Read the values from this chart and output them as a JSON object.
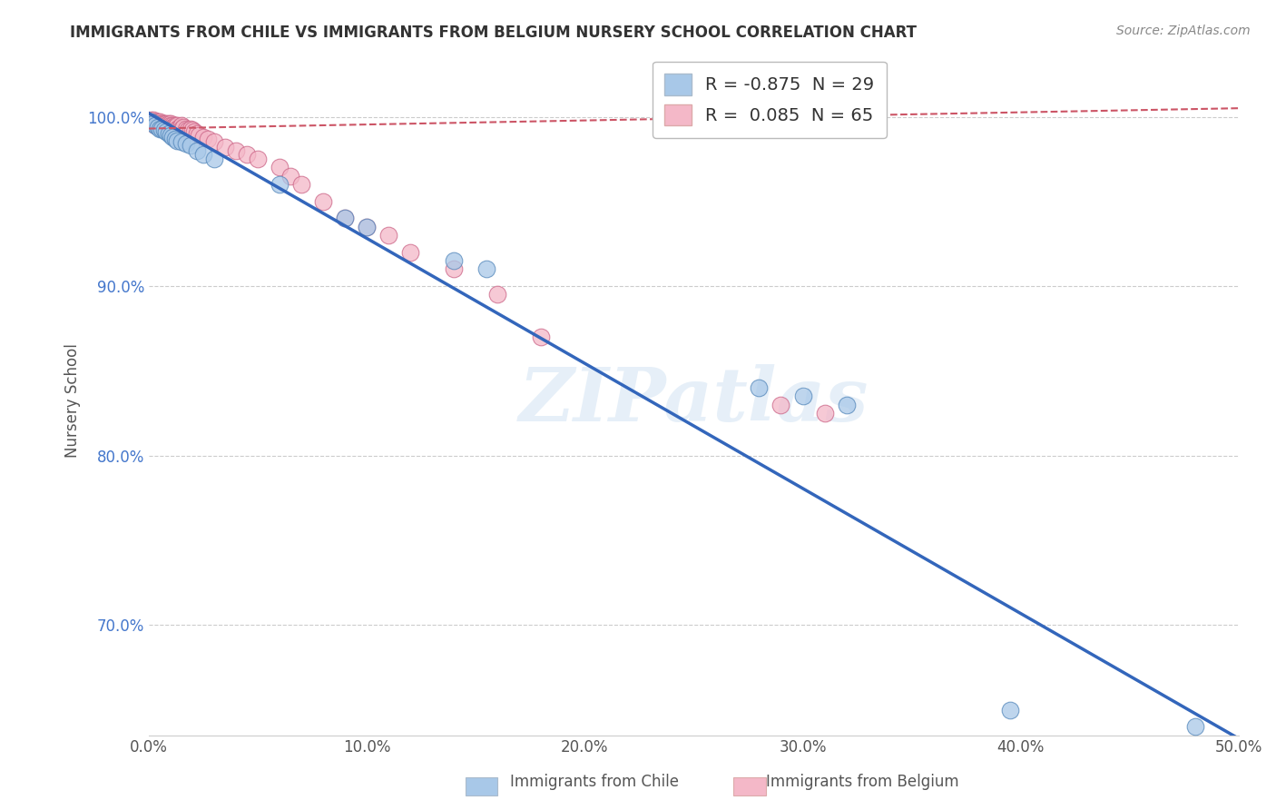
{
  "title": "IMMIGRANTS FROM CHILE VS IMMIGRANTS FROM BELGIUM NURSERY SCHOOL CORRELATION CHART",
  "source": "Source: ZipAtlas.com",
  "ylabel": "Nursery School",
  "xlim": [
    0.0,
    0.5
  ],
  "ylim": [
    0.635,
    1.03
  ],
  "xticks": [
    0.0,
    0.1,
    0.2,
    0.3,
    0.4,
    0.5
  ],
  "xtick_labels": [
    "0.0%",
    "10.0%",
    "20.0%",
    "30.0%",
    "40.0%",
    "50.0%"
  ],
  "yticks": [
    0.7,
    0.8,
    0.9,
    1.0
  ],
  "ytick_labels": [
    "70.0%",
    "80.0%",
    "90.0%",
    "100.0%"
  ],
  "chile_color": "#a8c8e8",
  "chile_edge_color": "#5588bb",
  "belgium_color": "#f4b8c8",
  "belgium_edge_color": "#cc6688",
  "chile_line_color": "#3366bb",
  "belgium_line_color": "#cc5566",
  "chile_R": -0.875,
  "chile_N": 29,
  "belgium_R": 0.085,
  "belgium_N": 65,
  "legend_label_chile": "Immigrants from Chile",
  "legend_label_belgium": "Immigrants from Belgium",
  "watermark": "ZIPatlas",
  "background_color": "#ffffff",
  "grid_color": "#cccccc",
  "chile_x": [
    0.001,
    0.002,
    0.003,
    0.004,
    0.005,
    0.006,
    0.007,
    0.008,
    0.009,
    0.01,
    0.011,
    0.012,
    0.013,
    0.015,
    0.017,
    0.019,
    0.022,
    0.025,
    0.03,
    0.06,
    0.09,
    0.1,
    0.14,
    0.155,
    0.28,
    0.3,
    0.32,
    0.395,
    0.48
  ],
  "chile_y": [
    0.997,
    0.996,
    0.995,
    0.994,
    0.993,
    0.993,
    0.992,
    0.991,
    0.99,
    0.989,
    0.988,
    0.987,
    0.986,
    0.985,
    0.984,
    0.983,
    0.98,
    0.978,
    0.975,
    0.96,
    0.94,
    0.935,
    0.915,
    0.91,
    0.84,
    0.835,
    0.83,
    0.65,
    0.64
  ],
  "belgium_x": [
    0.001,
    0.001,
    0.002,
    0.002,
    0.002,
    0.003,
    0.003,
    0.003,
    0.004,
    0.004,
    0.004,
    0.005,
    0.005,
    0.005,
    0.006,
    0.006,
    0.006,
    0.007,
    0.007,
    0.007,
    0.008,
    0.008,
    0.008,
    0.009,
    0.009,
    0.01,
    0.01,
    0.01,
    0.011,
    0.011,
    0.012,
    0.012,
    0.013,
    0.013,
    0.014,
    0.015,
    0.015,
    0.016,
    0.017,
    0.018,
    0.019,
    0.02,
    0.021,
    0.022,
    0.023,
    0.025,
    0.027,
    0.03,
    0.035,
    0.04,
    0.045,
    0.05,
    0.06,
    0.065,
    0.07,
    0.08,
    0.09,
    0.1,
    0.11,
    0.12,
    0.14,
    0.16,
    0.18,
    0.29,
    0.31
  ],
  "belgium_y": [
    0.998,
    0.997,
    0.998,
    0.997,
    0.996,
    0.997,
    0.996,
    0.995,
    0.997,
    0.996,
    0.995,
    0.997,
    0.996,
    0.995,
    0.996,
    0.995,
    0.994,
    0.996,
    0.995,
    0.994,
    0.996,
    0.995,
    0.994,
    0.996,
    0.994,
    0.996,
    0.995,
    0.993,
    0.995,
    0.994,
    0.995,
    0.994,
    0.995,
    0.993,
    0.994,
    0.995,
    0.993,
    0.994,
    0.993,
    0.992,
    0.993,
    0.992,
    0.991,
    0.99,
    0.989,
    0.988,
    0.987,
    0.985,
    0.982,
    0.98,
    0.978,
    0.975,
    0.97,
    0.965,
    0.96,
    0.95,
    0.94,
    0.935,
    0.93,
    0.92,
    0.91,
    0.895,
    0.87,
    0.83,
    0.825
  ],
  "chile_line_x": [
    0.0,
    0.5
  ],
  "chile_line_y": [
    1.002,
    0.633
  ],
  "belgium_line_x": [
    0.0,
    0.5
  ],
  "belgium_line_y": [
    0.993,
    1.005
  ]
}
